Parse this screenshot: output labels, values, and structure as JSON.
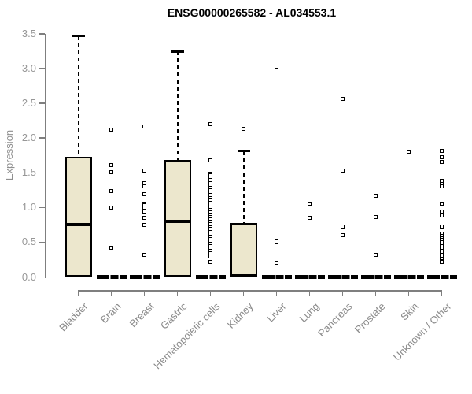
{
  "title": "ENSG00000265582 - AL034553.1",
  "chart_data": {
    "type": "boxplot",
    "title": "ENSG00000265582 - AL034553.1",
    "xlabel": "",
    "ylabel": "Expression",
    "ylim": [
      0.0,
      3.5
    ],
    "ytick_labels": [
      "0.0",
      "0.5",
      "1.0",
      "1.5",
      "2.0",
      "2.5",
      "3.0",
      "3.5"
    ],
    "grid": false,
    "legend": null,
    "colors": {
      "box_fill": "#ECE7CD",
      "box_border": "#000000",
      "axis": "#7f7f7f",
      "tick_label": "#979797",
      "title": "#000000"
    },
    "categories": [
      "Bladder",
      "Brain",
      "Breast",
      "Gastric",
      "Hematopoietic cells",
      "Kidney",
      "Liver",
      "Lung",
      "Pancreas",
      "Prostate",
      "Skin",
      "Unknown / Other"
    ],
    "boxes": [
      {
        "name": "Bladder",
        "q1": 0.0,
        "median": 0.76,
        "q3": 1.73,
        "whisker_low": 0.0,
        "whisker_high": 3.47,
        "outliers": []
      },
      {
        "name": "Brain",
        "q1": 0.0,
        "median": 0.0,
        "q3": 0.0,
        "whisker_low": 0.0,
        "whisker_high": 0.0,
        "outliers": [
          2.12,
          1.61,
          1.51,
          1.24,
          1.0,
          0.42
        ]
      },
      {
        "name": "Breast",
        "q1": 0.0,
        "median": 0.0,
        "q3": 0.0,
        "whisker_low": 0.0,
        "whisker_high": 0.0,
        "outliers": [
          2.17,
          1.53,
          1.35,
          1.31,
          1.19,
          1.06,
          1.03,
          1.0,
          0.94,
          0.85,
          0.75,
          0.32
        ]
      },
      {
        "name": "Gastric",
        "q1": 0.0,
        "median": 0.8,
        "q3": 1.68,
        "whisker_low": 0.0,
        "whisker_high": 3.25,
        "outliers": []
      },
      {
        "name": "Hematopoietic cells",
        "q1": 0.0,
        "median": 0.0,
        "q3": 0.0,
        "whisker_low": 0.0,
        "whisker_high": 0.0,
        "outliers": [
          2.2,
          1.68,
          1.49,
          1.46,
          1.42,
          1.39,
          1.35,
          1.32,
          1.28,
          1.25,
          1.21,
          1.18,
          1.14,
          1.11,
          1.07,
          1.04,
          1.0,
          0.97,
          0.93,
          0.9,
          0.86,
          0.83,
          0.79,
          0.76,
          0.72,
          0.69,
          0.65,
          0.62,
          0.58,
          0.55,
          0.51,
          0.48,
          0.44,
          0.41,
          0.37,
          0.34,
          0.3,
          0.21
        ]
      },
      {
        "name": "Kidney",
        "q1": 0.0,
        "median": 0.02,
        "q3": 0.78,
        "whisker_low": 0.0,
        "whisker_high": 1.81,
        "outliers": [
          2.13
        ]
      },
      {
        "name": "Liver",
        "q1": 0.0,
        "median": 0.0,
        "q3": 0.0,
        "whisker_low": 0.0,
        "whisker_high": 0.0,
        "outliers": [
          3.03,
          0.57,
          0.45,
          0.2
        ]
      },
      {
        "name": "Lung",
        "q1": 0.0,
        "median": 0.0,
        "q3": 0.0,
        "whisker_low": 0.0,
        "whisker_high": 0.0,
        "outliers": [
          1.06,
          0.85
        ]
      },
      {
        "name": "Pancreas",
        "q1": 0.0,
        "median": 0.0,
        "q3": 0.0,
        "whisker_low": 0.0,
        "whisker_high": 0.0,
        "outliers": [
          2.56,
          1.53,
          0.73,
          0.6
        ]
      },
      {
        "name": "Prostate",
        "q1": 0.0,
        "median": 0.0,
        "q3": 0.0,
        "whisker_low": 0.0,
        "whisker_high": 0.0,
        "outliers": [
          1.17,
          0.86,
          0.32
        ]
      },
      {
        "name": "Skin",
        "q1": 0.0,
        "median": 0.0,
        "q3": 0.0,
        "whisker_low": 0.0,
        "whisker_high": 0.0,
        "outliers": [
          1.8
        ]
      },
      {
        "name": "Unknown / Other",
        "q1": 0.0,
        "median": 0.0,
        "q3": 0.0,
        "whisker_low": 0.0,
        "whisker_high": 0.0,
        "outliers": [
          1.82,
          1.72,
          1.66,
          1.38,
          1.34,
          1.3,
          1.06,
          0.94,
          0.88,
          0.73,
          0.62,
          0.59,
          0.56,
          0.53,
          0.5,
          0.47,
          0.44,
          0.41,
          0.38,
          0.35,
          0.32,
          0.29,
          0.26,
          0.23,
          0.21
        ]
      }
    ]
  }
}
